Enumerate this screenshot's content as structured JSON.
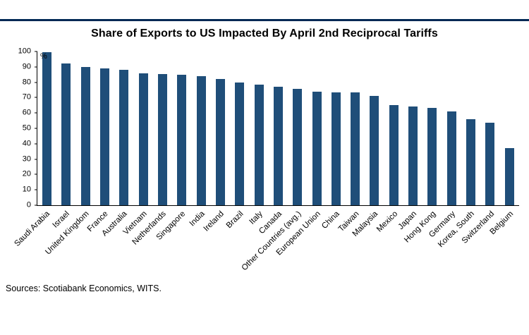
{
  "chart_data": {
    "type": "bar",
    "title": "Share of Exports to US Impacted By April 2nd Reciprocal Tariffs",
    "ylabel": "%",
    "ylim": [
      0,
      100
    ],
    "ytick_step": 10,
    "grid": false,
    "legend": "none",
    "bar_color": "#1f4e79",
    "categories": [
      "Saudi Arabia",
      "Israel",
      "United Kingdom",
      "France",
      "Australia",
      "Vietnam",
      "Netherlands",
      "Singapore",
      "India",
      "Ireland",
      "Brazil",
      "Italy",
      "Canada",
      "Other Countries (avg.)",
      "European Union",
      "China",
      "Taiwan",
      "Malaysia",
      "Mexico",
      "Japan",
      "Hong Kong",
      "Germany",
      "Korea, South",
      "Switzerland",
      "Belgium"
    ],
    "values": [
      99.5,
      92,
      90,
      89,
      88,
      86,
      85.5,
      85,
      84,
      82,
      80,
      78.5,
      77,
      75.5,
      74,
      73.5,
      73.5,
      71,
      65,
      64,
      63.5,
      61,
      56,
      53.5,
      37
    ]
  },
  "footer": {
    "sources": "Sources: Scotiabank Economics, WITS."
  },
  "styles": {
    "accent_rule_color": "#002855",
    "axis_color": "#000000"
  }
}
